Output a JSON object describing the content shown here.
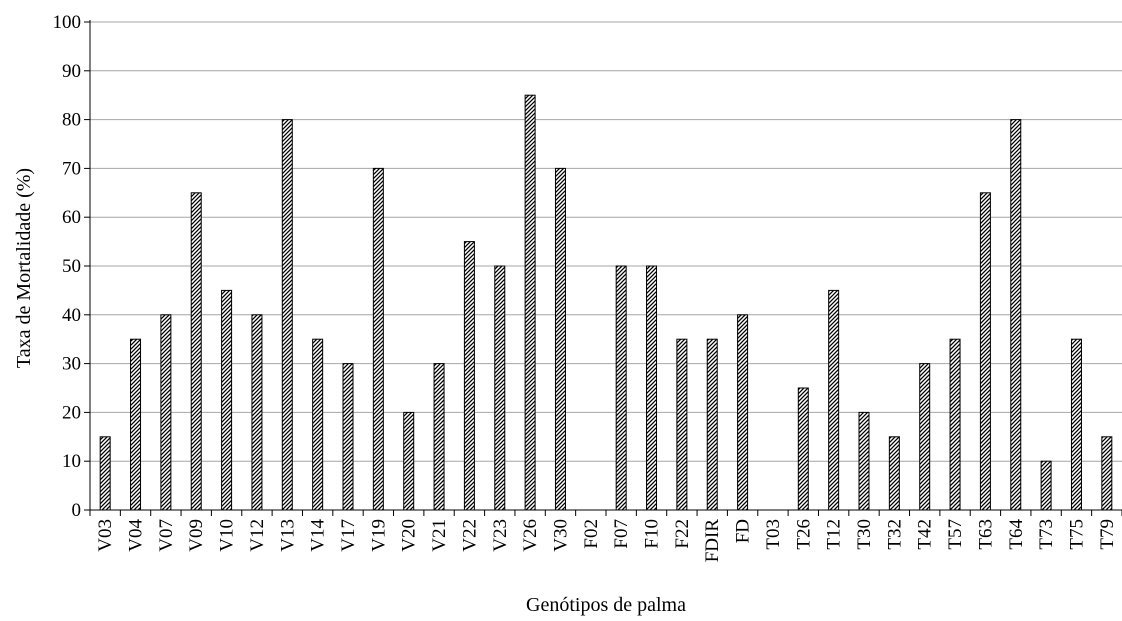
{
  "chart_data": {
    "type": "bar",
    "title": "",
    "xlabel": "Genótipos de palma",
    "ylabel": "Taxa de Mortalidade (%)",
    "ylim": [
      0,
      100
    ],
    "yticks": [
      0,
      10,
      20,
      30,
      40,
      50,
      60,
      70,
      80,
      90,
      100
    ],
    "grid": true,
    "legend": "none",
    "bar_pattern": "diagonal-hatch",
    "colors": {
      "bar_stroke": "#000000",
      "bar_hatch": "#000000",
      "grid": "#a6a6a6",
      "axis": "#000000"
    },
    "categories": [
      "V03",
      "V04",
      "V07",
      "V09",
      "V10",
      "V12",
      "V13",
      "V14",
      "V17",
      "V19",
      "V20",
      "V21",
      "V22",
      "V23",
      "V26",
      "V30",
      "F02",
      "F07",
      "F10",
      "F22",
      "FDIR",
      "FD",
      "T03",
      "T26",
      "T12",
      "T30",
      "T32",
      "T42",
      "T57",
      "T63",
      "T64",
      "T73",
      "T75",
      "T79"
    ],
    "values": [
      15,
      35,
      40,
      65,
      45,
      40,
      80,
      35,
      30,
      70,
      20,
      30,
      55,
      50,
      85,
      70,
      0,
      50,
      50,
      35,
      35,
      40,
      0,
      25,
      45,
      20,
      15,
      30,
      35,
      65,
      80,
      10,
      35,
      15
    ]
  }
}
